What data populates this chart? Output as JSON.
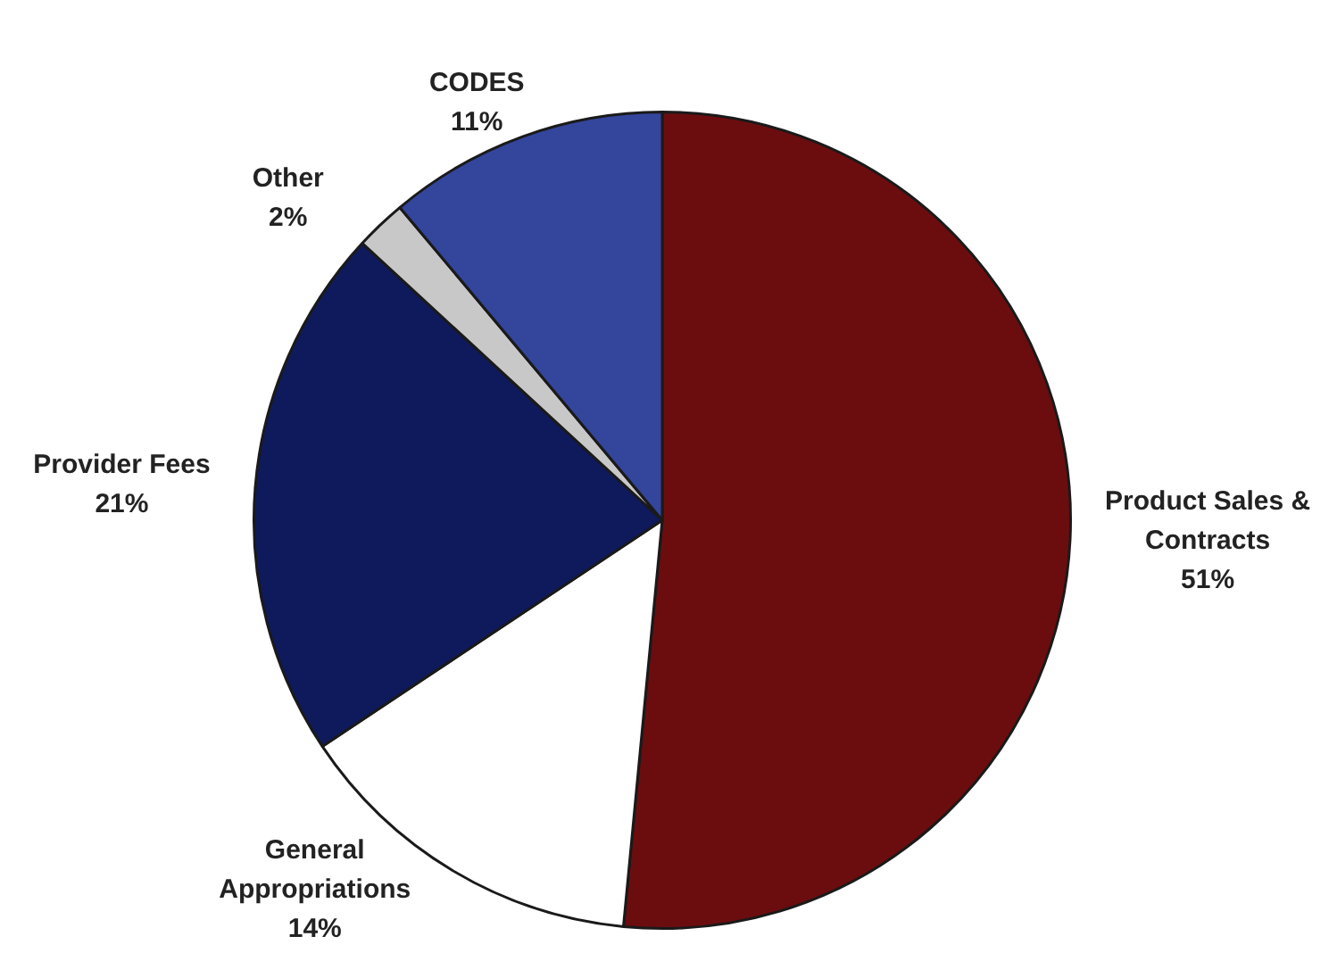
{
  "chart_data": {
    "type": "pie",
    "categories": [
      "Product Sales & Contracts",
      "General Appropriations",
      "Provider Fees",
      "Other",
      "CODES"
    ],
    "values": [
      51,
      14,
      21,
      2,
      11
    ],
    "value_labels": [
      "51%",
      "14%",
      "21%",
      "2%",
      "11%"
    ],
    "colors": [
      "#6b0d0f",
      "#ffffff",
      "#0f1a5c",
      "#c8c8c8",
      "#34459c"
    ],
    "legend": false
  }
}
